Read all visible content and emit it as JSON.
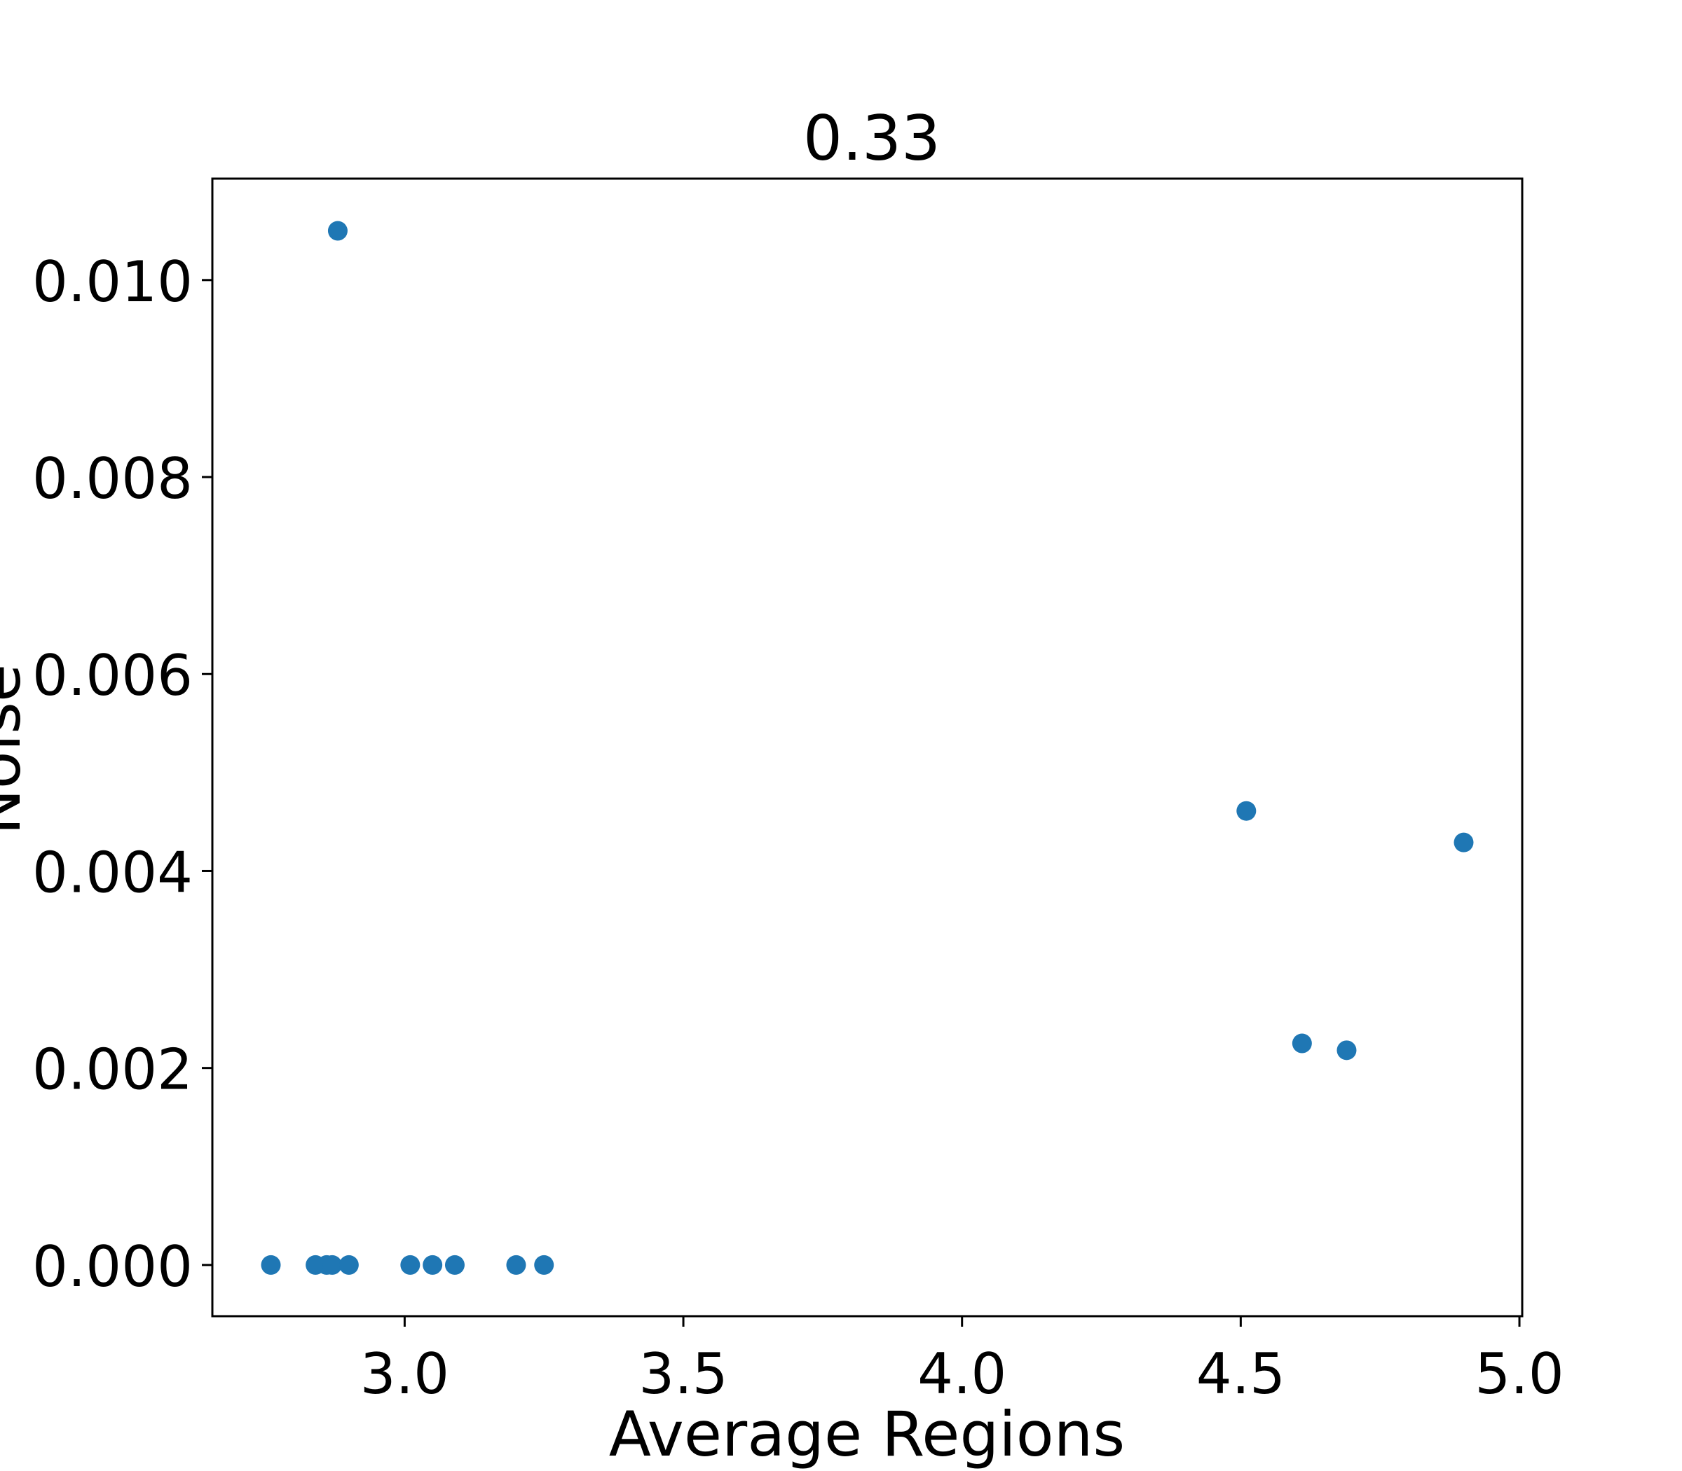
{
  "chart_data": {
    "type": "scatter",
    "title": "0.33",
    "xlabel": "Average Regions",
    "ylabel": "Noise",
    "xlim": [
      2.655,
      5.005
    ],
    "ylim": [
      -0.00052,
      0.01103
    ],
    "x_ticks": [
      3.0,
      3.5,
      4.0,
      4.5,
      5.0
    ],
    "x_tick_labels": [
      "3.0",
      "3.5",
      "4.0",
      "4.5",
      "5.0"
    ],
    "y_ticks": [
      0.0,
      0.002,
      0.004,
      0.006,
      0.008,
      0.01
    ],
    "y_tick_labels": [
      "0.000",
      "0.002",
      "0.004",
      "0.006",
      "0.008",
      "0.010"
    ],
    "grid": false,
    "legend": "none",
    "marker_color": "#1f77b4",
    "series": [
      {
        "points": [
          {
            "x": 2.76,
            "y": 0.0
          },
          {
            "x": 2.84,
            "y": 0.0
          },
          {
            "x": 2.86,
            "y": 0.0
          },
          {
            "x": 2.87,
            "y": 0.0
          },
          {
            "x": 2.88,
            "y": 0.0105
          },
          {
            "x": 2.9,
            "y": 0.0
          },
          {
            "x": 3.01,
            "y": 0.0
          },
          {
            "x": 3.05,
            "y": 0.0
          },
          {
            "x": 3.09,
            "y": 0.0
          },
          {
            "x": 3.2,
            "y": 0.0
          },
          {
            "x": 3.25,
            "y": 0.0
          },
          {
            "x": 4.51,
            "y": 0.00461
          },
          {
            "x": 4.61,
            "y": 0.00225
          },
          {
            "x": 4.69,
            "y": 0.00218
          },
          {
            "x": 4.9,
            "y": 0.00429
          }
        ]
      }
    ]
  }
}
